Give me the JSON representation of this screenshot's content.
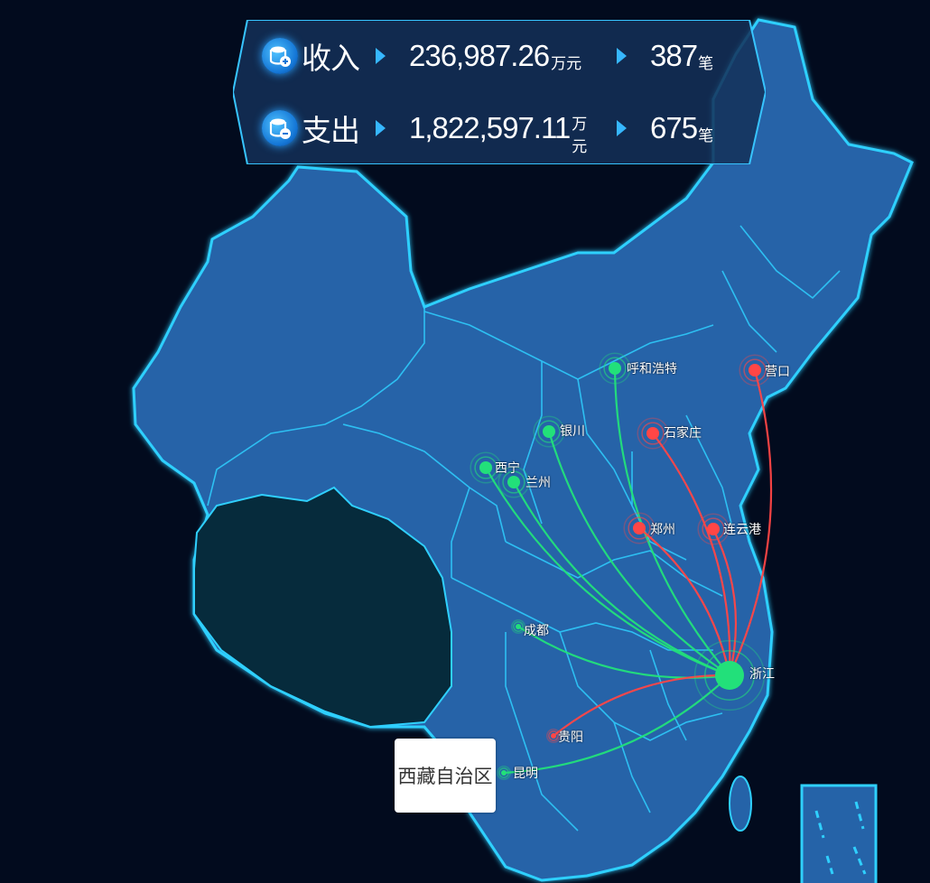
{
  "stats": {
    "income": {
      "label": "收入",
      "amount": "236,987.26",
      "amount_unit": "万元",
      "count": "387",
      "count_unit": "笔"
    },
    "expense": {
      "label": "支出",
      "amount": "1,822,597.11",
      "amount_unit": "万元",
      "count": "675",
      "count_unit": "笔"
    }
  },
  "colors": {
    "income_flow": "#22e07a",
    "expense_flow": "#ff4646",
    "province_fill": "#2563a8",
    "province_border": "#2fd0ff",
    "highlight_fill": "#062b3c",
    "background": "#020b1e"
  },
  "hub": {
    "name": "浙江"
  },
  "income_cities": [
    {
      "name": "呼和浩特"
    },
    {
      "name": "银川"
    },
    {
      "name": "西宁"
    },
    {
      "name": "兰州"
    },
    {
      "name": "成都"
    },
    {
      "name": "昆明"
    }
  ],
  "expense_cities": [
    {
      "name": "营口"
    },
    {
      "name": "石家庄"
    },
    {
      "name": "郑州"
    },
    {
      "name": "连云港"
    },
    {
      "name": "贵阳"
    }
  ],
  "tooltip": {
    "text": "西藏自治区"
  },
  "icons": {
    "income": "database-plus-icon",
    "expense": "database-minus-icon"
  }
}
